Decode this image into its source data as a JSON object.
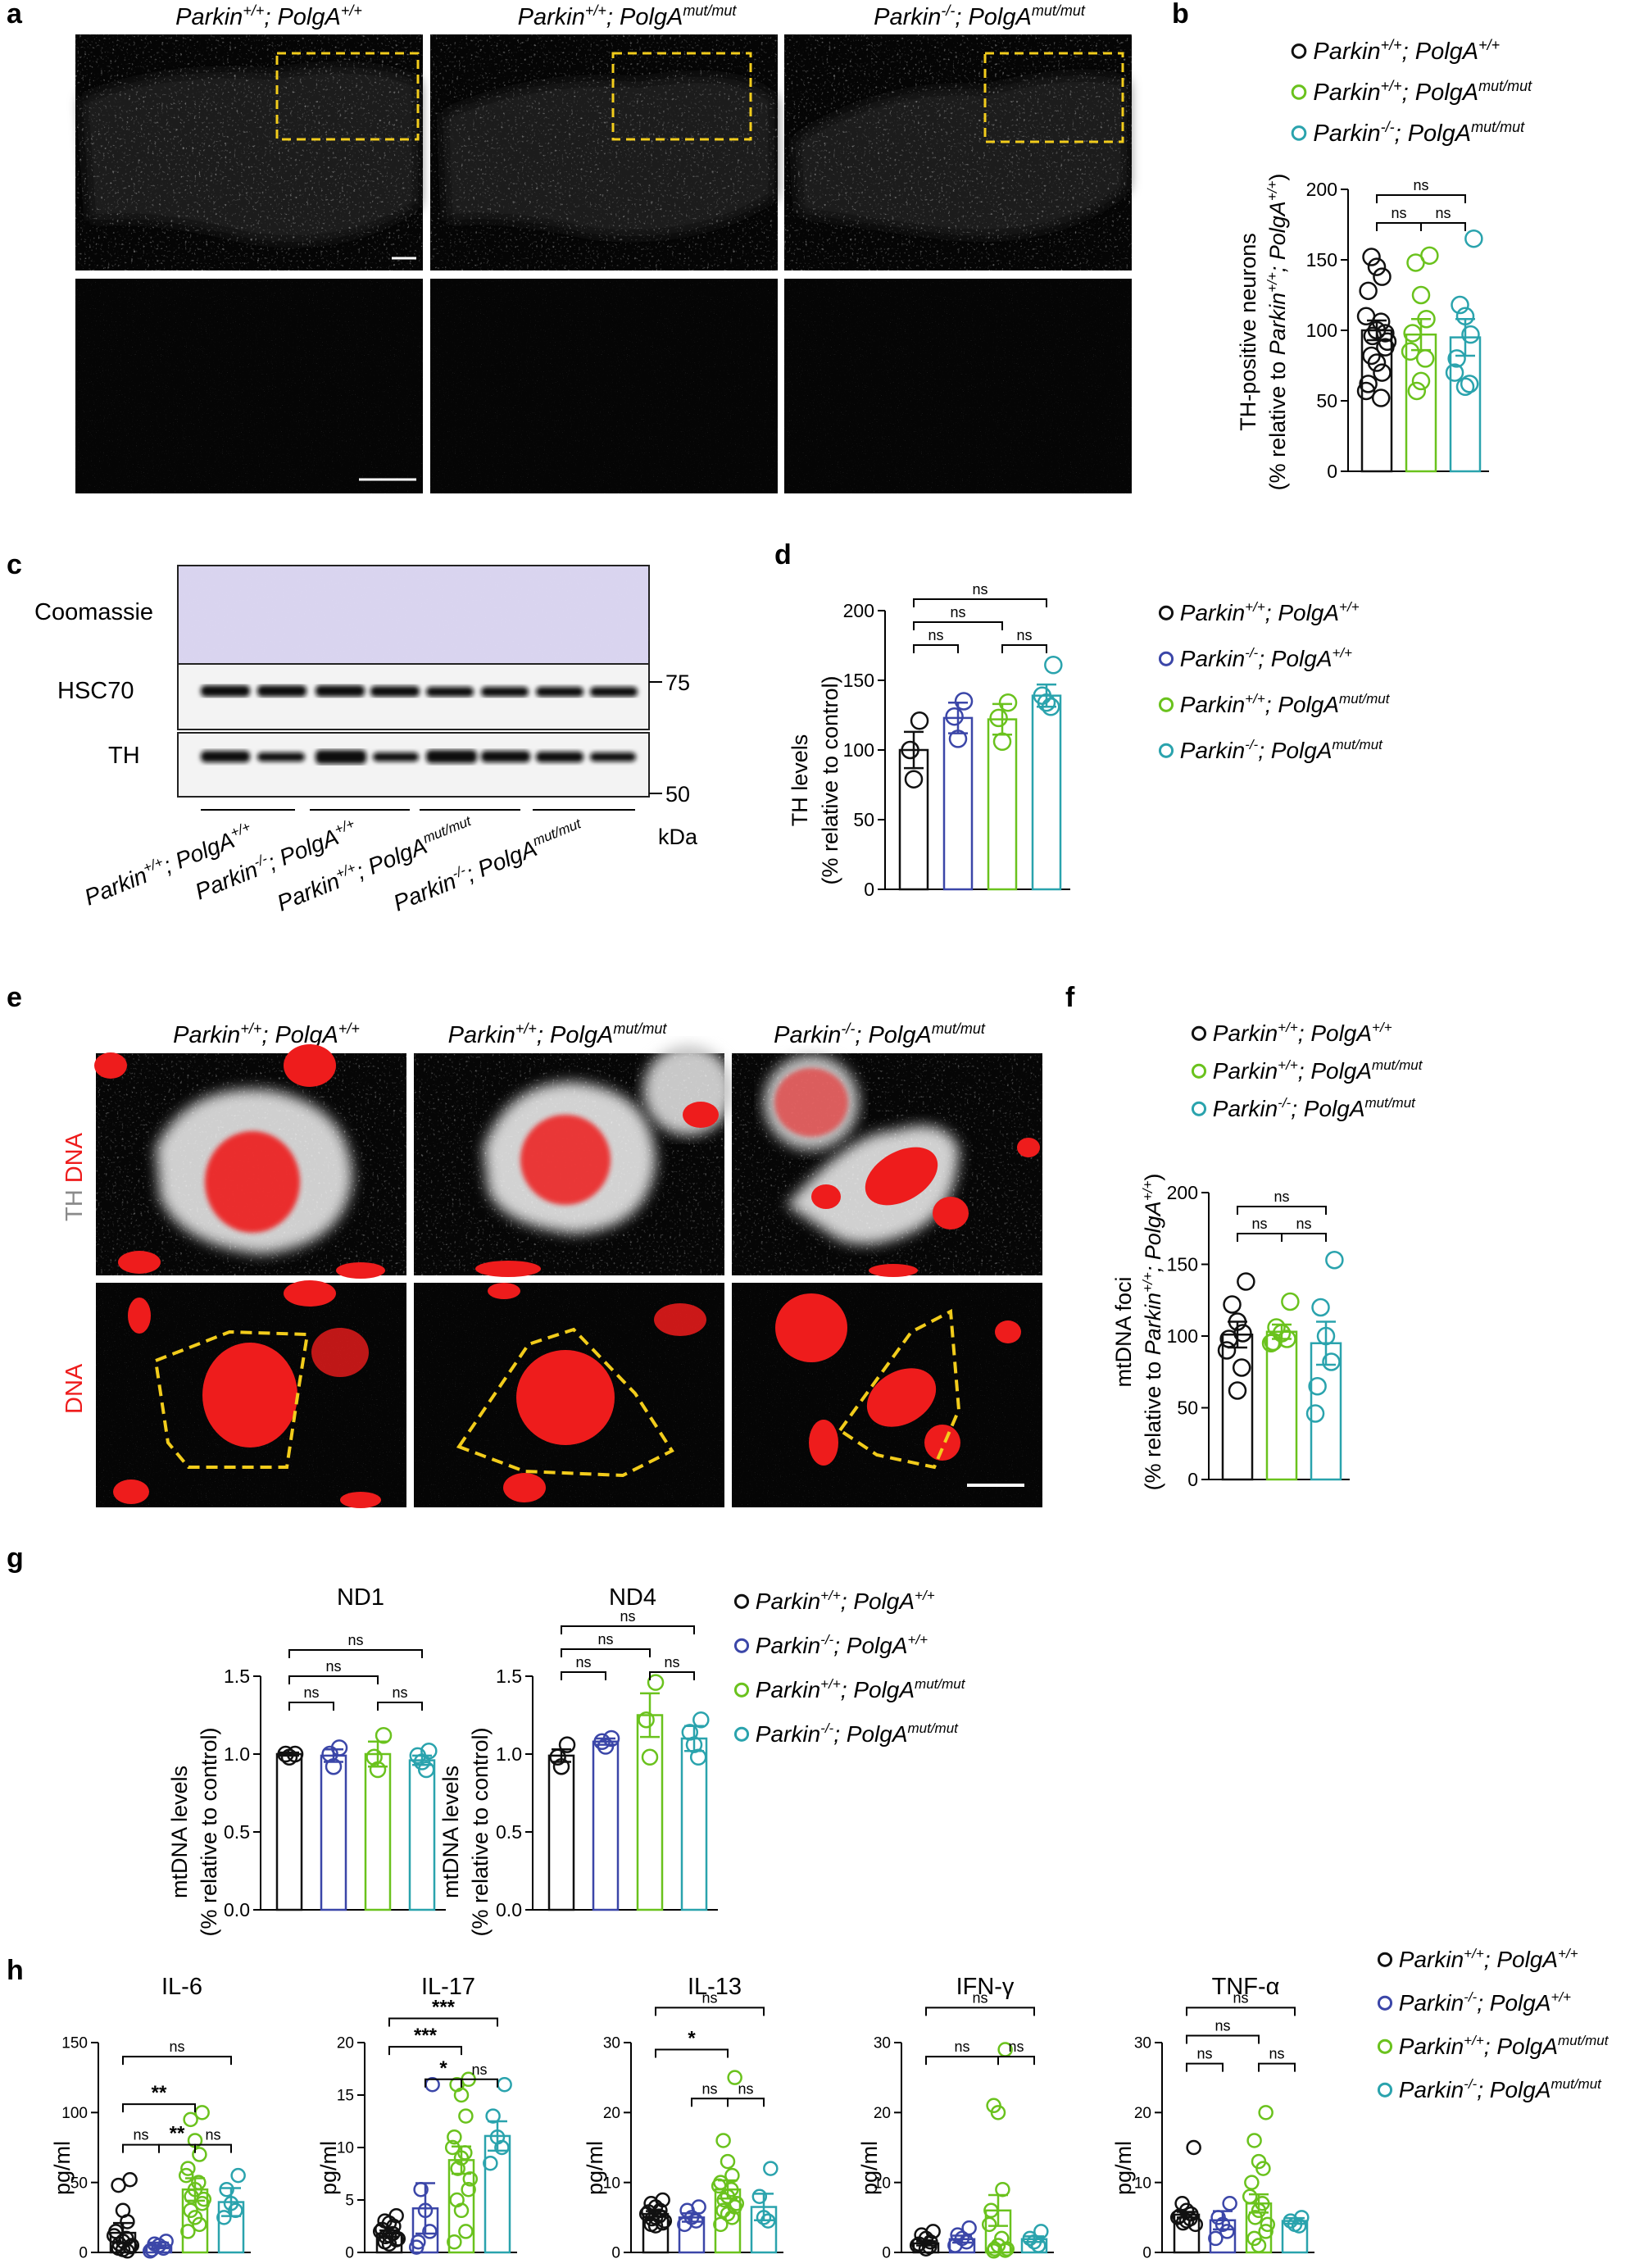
{
  "panels": {
    "a": {
      "label": "a",
      "headers": [
        [
          "Parkin",
          "+/+",
          "; PolgA",
          "+/+"
        ],
        [
          "Parkin",
          "+/+",
          "; PolgA",
          "mut/mut"
        ],
        [
          "Parkin",
          "-/-",
          "; PolgA",
          "mut/mut"
        ]
      ]
    },
    "b": {
      "label": "b",
      "legend": [
        [
          "Parkin",
          "+/+",
          "; PolgA",
          "+/+"
        ],
        [
          "Parkin",
          "+/+",
          "; PolgA",
          "mut/mut"
        ],
        [
          "Parkin",
          "-/-",
          "; PolgA",
          "mut/mut"
        ]
      ],
      "ylabel_line1": "TH-positive neurons",
      "ylabel_line2": [
        "(% relative to ",
        "Parkin",
        "+/+",
        "; PolgA",
        "+/+",
        ")"
      ]
    },
    "c": {
      "label": "c",
      "rows": [
        "Coomassie",
        "HSC70",
        "TH"
      ],
      "markers": [
        "75",
        "50"
      ],
      "unit": "kDa",
      "groups": [
        [
          "Parkin",
          "+/+",
          "; PolgA",
          "+/+"
        ],
        [
          "Parkin",
          "-/-",
          "; PolgA",
          "+/+"
        ],
        [
          "Parkin",
          "+/+",
          "; PolgA",
          "mut/mut"
        ],
        [
          "Parkin",
          "-/-",
          "; PolgA",
          "mut/mut"
        ]
      ]
    },
    "d": {
      "label": "d",
      "ylabel_line1": "TH levels",
      "ylabel_line2": "(% relative to control)",
      "legend": [
        [
          "Parkin",
          "+/+",
          "; PolgA",
          "+/+"
        ],
        [
          "Parkin",
          "-/-",
          "; PolgA",
          "+/+"
        ],
        [
          "Parkin",
          "+/+",
          "; PolgA",
          "mut/mut"
        ],
        [
          "Parkin",
          "-/-",
          "; PolgA",
          "mut/mut"
        ]
      ]
    },
    "e": {
      "label": "e",
      "headers": [
        [
          "Parkin",
          "+/+",
          "; PolgA",
          "+/+"
        ],
        [
          "Parkin",
          "+/+",
          "; PolgA",
          "mut/mut"
        ],
        [
          "Parkin",
          "-/-",
          "; PolgA",
          "mut/mut"
        ]
      ],
      "row1_label_a": "TH",
      "row1_label_b": "DNA",
      "row2_label": "DNA"
    },
    "f": {
      "label": "f",
      "legend": [
        [
          "Parkin",
          "+/+",
          "; PolgA",
          "+/+"
        ],
        [
          "Parkin",
          "+/+",
          "; PolgA",
          "mut/mut"
        ],
        [
          "Parkin",
          "-/-",
          "; PolgA",
          "mut/mut"
        ]
      ],
      "ylabel_line1": "mtDNA foci",
      "ylabel_line2": [
        "(% relative to ",
        "Parkin",
        "+/+",
        "; PolgA",
        "+/+",
        ")"
      ]
    },
    "g": {
      "label": "g",
      "ylabel_line1": "mtDNA levels",
      "ylabel_line2": "(% relative to control)",
      "legend": [
        [
          "Parkin",
          "+/+",
          "; PolgA",
          "+/+"
        ],
        [
          "Parkin",
          "-/-",
          "; PolgA",
          "+/+"
        ],
        [
          "Parkin",
          "+/+",
          "; PolgA",
          "mut/mut"
        ],
        [
          "Parkin",
          "-/-",
          "; PolgA",
          "mut/mut"
        ]
      ]
    },
    "h": {
      "label": "h",
      "ylabel": "pg/ml",
      "legend": [
        [
          "Parkin",
          "+/+",
          "; PolgA",
          "+/+"
        ],
        [
          "Parkin",
          "-/-",
          "; PolgA",
          "+/+"
        ],
        [
          "Parkin",
          "+/+",
          "; PolgA",
          "mut/mut"
        ],
        [
          "Parkin",
          "-/-",
          "; PolgA",
          "mut/mut"
        ]
      ]
    }
  },
  "colors": {
    "g1": "#111111",
    "g2": "#3b46a8",
    "g3": "#6ac21d",
    "g4": "#2aa3ad",
    "sig": "#000000",
    "box": "#f2cc1b",
    "dna": "#ee1c1c"
  },
  "chart_data": [
    {
      "id": "b",
      "type": "bar",
      "ylim": [
        0,
        200
      ],
      "yticks": [
        0,
        50,
        100,
        150,
        200
      ],
      "series": [
        {
          "values": [
            98,
            152,
            145,
            138,
            128,
            110,
            106,
            100,
            96,
            92,
            88,
            82,
            77,
            70,
            62,
            57,
            52
          ]
        },
        {
          "values": [
            153,
            148,
            125,
            108,
            98,
            85,
            80,
            64,
            57
          ]
        },
        {
          "values": [
            165,
            118,
            110,
            97,
            80,
            70,
            62,
            60
          ]
        }
      ],
      "means": [
        100,
        97,
        95
      ],
      "sems": [
        7,
        11,
        13
      ],
      "sig": [
        {
          "a": 0,
          "b": 1,
          "label": "ns"
        },
        {
          "a": 1,
          "b": 2,
          "label": "ns"
        },
        {
          "a": 0,
          "b": 2,
          "label": "ns"
        }
      ]
    },
    {
      "id": "d",
      "type": "bar",
      "ylim": [
        0,
        200
      ],
      "yticks": [
        0,
        50,
        100,
        150,
        200
      ],
      "series": [
        {
          "values": [
            121,
            100,
            79
          ]
        },
        {
          "values": [
            135,
            124,
            108
          ]
        },
        {
          "values": [
            134,
            123,
            106
          ]
        },
        {
          "values": [
            161,
            139,
            134,
            131
          ]
        }
      ],
      "means": [
        100,
        123,
        122,
        139
      ],
      "sems": [
        13,
        11,
        11,
        8
      ],
      "sig": [
        {
          "a": 0,
          "b": 1,
          "label": "ns"
        },
        {
          "a": 2,
          "b": 3,
          "label": "ns"
        },
        {
          "a": 0,
          "b": 2,
          "label": "ns"
        },
        {
          "a": 0,
          "b": 3,
          "label": "ns"
        }
      ]
    },
    {
      "id": "f",
      "type": "bar",
      "ylim": [
        0,
        200
      ],
      "yticks": [
        0,
        50,
        100,
        150,
        200
      ],
      "series": [
        {
          "values": [
            138,
            122,
            110,
            102,
            98,
            90,
            78,
            62
          ]
        },
        {
          "values": [
            124,
            106,
            102,
            98,
            96,
            95
          ]
        },
        {
          "values": [
            153,
            120,
            100,
            82,
            65,
            46
          ]
        }
      ],
      "means": [
        101,
        103,
        95
      ],
      "sems": [
        9,
        5,
        15
      ],
      "sig": [
        {
          "a": 0,
          "b": 1,
          "label": "ns"
        },
        {
          "a": 1,
          "b": 2,
          "label": "ns"
        },
        {
          "a": 0,
          "b": 2,
          "label": "ns"
        }
      ]
    },
    {
      "id": "g_nd1",
      "type": "bar",
      "title": "ND1",
      "ylim": [
        0,
        1.5
      ],
      "yticks": [
        0.0,
        0.5,
        1.0,
        1.5
      ],
      "series": [
        {
          "values": [
            1.0,
            1.0,
            0.98
          ]
        },
        {
          "values": [
            1.04,
            1.0,
            0.92
          ]
        },
        {
          "values": [
            1.12,
            0.98,
            0.9
          ]
        },
        {
          "values": [
            1.02,
            0.99,
            0.95,
            0.9
          ]
        }
      ],
      "means": [
        1.0,
        0.99,
        1.0,
        0.96
      ],
      "sems": [
        0.01,
        0.04,
        0.08,
        0.03
      ],
      "sig": [
        {
          "a": 0,
          "b": 1,
          "label": "ns"
        },
        {
          "a": 2,
          "b": 3,
          "label": "ns"
        },
        {
          "a": 0,
          "b": 2,
          "label": "ns"
        },
        {
          "a": 0,
          "b": 3,
          "label": "ns"
        }
      ]
    },
    {
      "id": "g_nd4",
      "type": "bar",
      "title": "ND4",
      "ylim": [
        0,
        1.5
      ],
      "yticks": [
        0.0,
        0.5,
        1.0,
        1.5
      ],
      "series": [
        {
          "values": [
            1.06,
            0.98,
            0.92
          ]
        },
        {
          "values": [
            1.1,
            1.08,
            1.05
          ]
        },
        {
          "values": [
            1.46,
            1.22,
            0.98
          ]
        },
        {
          "values": [
            1.22,
            1.14,
            1.06,
            0.98
          ]
        }
      ],
      "means": [
        0.99,
        1.08,
        1.25,
        1.1
      ],
      "sems": [
        0.04,
        0.02,
        0.14,
        0.08
      ],
      "sig": [
        {
          "a": 0,
          "b": 1,
          "label": "ns"
        },
        {
          "a": 2,
          "b": 3,
          "label": "ns"
        },
        {
          "a": 0,
          "b": 2,
          "label": "ns"
        },
        {
          "a": 0,
          "b": 3,
          "label": "ns"
        }
      ]
    },
    {
      "id": "h_il6",
      "type": "bar",
      "title": "IL-6",
      "ylim": [
        0,
        150
      ],
      "yticks": [
        0,
        50,
        100,
        150
      ],
      "series": [
        {
          "values": [
            52,
            48,
            30,
            22,
            15,
            12,
            10,
            8,
            6,
            5,
            4,
            3,
            2,
            1
          ]
        },
        {
          "values": [
            8,
            6,
            5,
            3,
            2,
            1
          ]
        },
        {
          "values": [
            100,
            95,
            80,
            70,
            60,
            55,
            50,
            45,
            40,
            38,
            35,
            30,
            25,
            20,
            15
          ]
        },
        {
          "values": [
            55,
            45,
            35,
            30,
            25
          ]
        }
      ],
      "means": [
        14,
        5,
        45,
        36
      ],
      "sems": [
        7,
        2,
        8,
        10
      ],
      "sig": [
        {
          "a": 0,
          "b": 1,
          "label": "ns",
          "h": 77
        },
        {
          "a": 1,
          "b": 2,
          "label": "**",
          "h": 77
        },
        {
          "a": 2,
          "b": 3,
          "label": "ns",
          "h": 77
        },
        {
          "a": 0,
          "b": 2,
          "label": "**",
          "h": 106
        },
        {
          "a": 0,
          "b": 3,
          "label": "ns",
          "h": 140
        }
      ]
    },
    {
      "id": "h_il17",
      "type": "bar",
      "title": "IL-17",
      "ylim": [
        0,
        20
      ],
      "yticks": [
        0,
        5,
        10,
        15,
        20
      ],
      "series": [
        {
          "values": [
            3.5,
            3.0,
            2.8,
            2.5,
            2.2,
            2.0,
            1.8,
            1.6,
            1.5,
            1.3,
            1.2,
            1.0,
            0.8
          ]
        },
        {
          "values": [
            16.0,
            6.0,
            4.0,
            2.0,
            1.0,
            0.5
          ]
        },
        {
          "values": [
            16.5,
            16.0,
            15.0,
            13.0,
            11.0,
            10.0,
            9.5,
            9.0,
            8.0,
            7.0,
            6.0,
            5.0,
            4.0,
            2.0,
            1.0
          ]
        },
        {
          "values": [
            16.0,
            13.0,
            11.0,
            10.0,
            8.5
          ]
        }
      ],
      "means": [
        1.8,
        4.2,
        8.8,
        11.1
      ],
      "sems": [
        0.3,
        2.4,
        1.3,
        1.4
      ],
      "sig": [
        {
          "a": 1,
          "b": 2,
          "label": "*",
          "h": 16.5
        },
        {
          "a": 2,
          "b": 3,
          "label": "ns",
          "h": 16.5
        },
        {
          "a": 0,
          "b": 2,
          "label": "***",
          "h": 19.6
        },
        {
          "a": 0,
          "b": 3,
          "label": "***",
          "h": 22.3
        }
      ]
    },
    {
      "id": "h_il13",
      "type": "bar",
      "title": "IL-13",
      "ylim": [
        0,
        30
      ],
      "yticks": [
        0,
        10,
        20,
        30
      ],
      "series": [
        {
          "values": [
            7.5,
            7.0,
            6.5,
            6.0,
            5.8,
            5.5,
            5.2,
            5.0,
            4.8,
            4.5,
            4.2,
            4.0,
            3.8
          ]
        },
        {
          "values": [
            6.5,
            6.0,
            5.0,
            4.5,
            4.0
          ]
        },
        {
          "values": [
            25.0,
            16.0,
            13.0,
            11.0,
            10.0,
            9.5,
            9.0,
            8.0,
            7.5,
            7.0,
            6.5,
            6.0,
            5.5,
            5.0,
            4.0
          ]
        },
        {
          "values": [
            12.0,
            8.0,
            5.0,
            4.5
          ]
        }
      ],
      "means": [
        5.5,
        5.0,
        9.0,
        6.5
      ],
      "sems": [
        0.4,
        0.6,
        1.3,
        1.9
      ],
      "sig": [
        {
          "a": 1,
          "b": 2,
          "label": "ns",
          "h": 22
        },
        {
          "a": 2,
          "b": 3,
          "label": "ns",
          "h": 22
        },
        {
          "a": 0,
          "b": 2,
          "label": "*",
          "h": 29
        },
        {
          "a": 0,
          "b": 3,
          "label": "ns",
          "h": 35
        }
      ]
    },
    {
      "id": "h_ifng",
      "type": "bar",
      "title": "IFN-γ",
      "ylim": [
        0,
        30
      ],
      "yticks": [
        0,
        10,
        20,
        30
      ],
      "series": [
        {
          "values": [
            3.0,
            2.5,
            2.0,
            1.5,
            1.2,
            1.0,
            0.8,
            0.5
          ]
        },
        {
          "values": [
            3.5,
            2.5,
            2.0,
            1.5,
            1.0
          ]
        },
        {
          "values": [
            29.0,
            21.0,
            20.0,
            9.0,
            6.0,
            4.0,
            2.0,
            1.0,
            0.5,
            0.5,
            0.3,
            0.2
          ]
        },
        {
          "values": [
            3.0,
            2.0,
            1.5,
            1.0
          ]
        }
      ],
      "means": [
        1.3,
        1.9,
        6.0,
        1.9
      ],
      "sems": [
        0.3,
        0.5,
        2.2,
        0.4
      ],
      "sig": [
        {
          "a": 0,
          "b": 2,
          "label": "ns",
          "h": 28
        },
        {
          "a": 2,
          "b": 3,
          "label": "ns",
          "h": 28
        },
        {
          "a": 0,
          "b": 3,
          "label": "ns",
          "h": 35
        }
      ]
    },
    {
      "id": "h_tnfa",
      "type": "bar",
      "title": "TNF-α",
      "ylim": [
        0,
        30
      ],
      "yticks": [
        0,
        10,
        20,
        30
      ],
      "series": [
        {
          "values": [
            15.0,
            7.0,
            6.0,
            5.5,
            5.2,
            5.0,
            4.8,
            4.5,
            4.2,
            4.0
          ]
        },
        {
          "values": [
            7.0,
            5.0,
            4.0,
            3.0,
            2.0
          ]
        },
        {
          "values": [
            20.0,
            16.0,
            13.0,
            12.0,
            10.0,
            8.0,
            7.0,
            6.0,
            5.0,
            4.0,
            3.0,
            2.0,
            1.0
          ]
        },
        {
          "values": [
            5.0,
            4.5,
            4.0,
            3.8
          ]
        }
      ],
      "means": [
        5.4,
        4.6,
        7.0,
        4.5
      ],
      "sems": [
        0.4,
        1.3,
        1.3,
        0.4
      ],
      "sig": [
        {
          "a": 0,
          "b": 1,
          "label": "ns",
          "h": 27
        },
        {
          "a": 2,
          "b": 3,
          "label": "ns",
          "h": 27
        },
        {
          "a": 0,
          "b": 2,
          "label": "ns",
          "h": 31
        },
        {
          "a": 0,
          "b": 3,
          "label": "ns",
          "h": 35
        }
      ]
    }
  ]
}
